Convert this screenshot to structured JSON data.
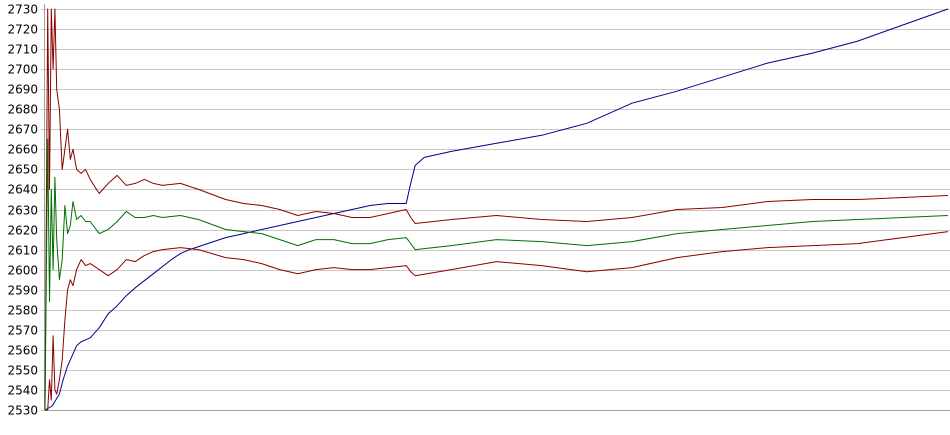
{
  "chart_data": {
    "type": "line",
    "title": "",
    "xlabel": "",
    "ylabel": "",
    "ylim": [
      2530,
      2730
    ],
    "y_ticks": [
      2730,
      2720,
      2710,
      2700,
      2690,
      2680,
      2670,
      2660,
      2650,
      2640,
      2630,
      2620,
      2610,
      2600,
      2590,
      2580,
      2570,
      2560,
      2550,
      2540,
      2530
    ],
    "x_range": [
      0,
      1
    ],
    "grid": "horizontal",
    "legend": "none",
    "series": [
      {
        "color": "#00008b",
        "x": [
          0,
          0.004,
          0.008,
          0.012,
          0.016,
          0.02,
          0.025,
          0.03,
          0.035,
          0.04,
          0.05,
          0.06,
          0.07,
          0.08,
          0.09,
          0.1,
          0.12,
          0.14,
          0.15,
          0.16,
          0.18,
          0.2,
          0.22,
          0.24,
          0.26,
          0.28,
          0.3,
          0.32,
          0.34,
          0.36,
          0.38,
          0.4,
          0.405,
          0.41,
          0.42,
          0.45,
          0.5,
          0.55,
          0.6,
          0.65,
          0.7,
          0.75,
          0.8,
          0.85,
          0.9,
          0.95,
          1.0
        ],
        "values": [
          2530,
          2531,
          2532,
          2535,
          2538,
          2545,
          2552,
          2557,
          2562,
          2564,
          2566,
          2571,
          2578,
          2582,
          2587,
          2591,
          2598,
          2605,
          2608,
          2610,
          2613,
          2616,
          2618,
          2620,
          2622,
          2624,
          2626,
          2628,
          2630,
          2632,
          2633,
          2633,
          2643,
          2652,
          2656,
          2659,
          2663,
          2667,
          2673,
          2683,
          2689,
          2696,
          2703,
          2708,
          2714,
          2722,
          2730
        ]
      },
      {
        "color": "#8b0000",
        "x": [
          0,
          0.003,
          0.005,
          0.007,
          0.009,
          0.011,
          0.013,
          0.016,
          0.019,
          0.022,
          0.025,
          0.028,
          0.031,
          0.035,
          0.04,
          0.045,
          0.05,
          0.06,
          0.07,
          0.08,
          0.09,
          0.1,
          0.11,
          0.12,
          0.13,
          0.15,
          0.17,
          0.2,
          0.22,
          0.24,
          0.26,
          0.28,
          0.3,
          0.32,
          0.34,
          0.36,
          0.38,
          0.4,
          0.405,
          0.41,
          0.45,
          0.5,
          0.55,
          0.6,
          0.65,
          0.7,
          0.75,
          0.8,
          0.85,
          0.9,
          0.95,
          1.0
        ],
        "values": [
          2530,
          2730,
          2640,
          2730,
          2700,
          2730,
          2690,
          2680,
          2650,
          2660,
          2670,
          2655,
          2660,
          2650,
          2648,
          2650,
          2645,
          2638,
          2643,
          2647,
          2642,
          2643,
          2645,
          2643,
          2642,
          2643,
          2640,
          2635,
          2633,
          2632,
          2630,
          2627,
          2629,
          2628,
          2626,
          2626,
          2628,
          2630,
          2626,
          2623,
          2625,
          2627,
          2625,
          2624,
          2626,
          2630,
          2631,
          2634,
          2635,
          2635,
          2636,
          2637
        ]
      },
      {
        "color": "#8b0000",
        "x": [
          0,
          0.003,
          0.005,
          0.007,
          0.009,
          0.011,
          0.013,
          0.016,
          0.019,
          0.022,
          0.025,
          0.028,
          0.031,
          0.035,
          0.04,
          0.045,
          0.05,
          0.06,
          0.07,
          0.08,
          0.09,
          0.1,
          0.11,
          0.12,
          0.13,
          0.15,
          0.17,
          0.2,
          0.22,
          0.24,
          0.26,
          0.28,
          0.3,
          0.32,
          0.34,
          0.36,
          0.38,
          0.4,
          0.405,
          0.41,
          0.45,
          0.5,
          0.55,
          0.6,
          0.65,
          0.7,
          0.75,
          0.8,
          0.85,
          0.9,
          0.95,
          1.0
        ],
        "values": [
          2530,
          2530,
          2545,
          2535,
          2567,
          2540,
          2538,
          2545,
          2555,
          2575,
          2590,
          2595,
          2592,
          2600,
          2605,
          2602,
          2603,
          2600,
          2597,
          2600,
          2605,
          2604,
          2607,
          2609,
          2610,
          2611,
          2610,
          2606,
          2605,
          2603,
          2600,
          2598,
          2600,
          2601,
          2600,
          2600,
          2601,
          2602,
          2599,
          2597,
          2600,
          2604,
          2602,
          2599,
          2601,
          2606,
          2609,
          2611,
          2612,
          2613,
          2616,
          2619
        ]
      },
      {
        "color": "#007000",
        "x": [
          0,
          0.003,
          0.005,
          0.007,
          0.009,
          0.011,
          0.013,
          0.016,
          0.019,
          0.022,
          0.025,
          0.028,
          0.031,
          0.035,
          0.04,
          0.045,
          0.05,
          0.06,
          0.07,
          0.08,
          0.09,
          0.1,
          0.11,
          0.12,
          0.13,
          0.15,
          0.17,
          0.2,
          0.22,
          0.24,
          0.26,
          0.28,
          0.3,
          0.32,
          0.34,
          0.36,
          0.38,
          0.4,
          0.405,
          0.41,
          0.45,
          0.5,
          0.55,
          0.6,
          0.65,
          0.7,
          0.75,
          0.8,
          0.85,
          0.9,
          0.95,
          1.0
        ],
        "values": [
          2530,
          2665,
          2584,
          2640,
          2600,
          2646,
          2615,
          2595,
          2605,
          2632,
          2618,
          2622,
          2634,
          2625,
          2627,
          2624,
          2624,
          2618,
          2620,
          2624,
          2629,
          2626,
          2626,
          2627,
          2626,
          2627,
          2625,
          2620,
          2619,
          2618,
          2615,
          2612,
          2615,
          2615,
          2613,
          2613,
          2615,
          2616,
          2613,
          2610,
          2612,
          2615,
          2614,
          2612,
          2614,
          2618,
          2620,
          2622,
          2624,
          2625,
          2626,
          2627
        ]
      }
    ]
  }
}
